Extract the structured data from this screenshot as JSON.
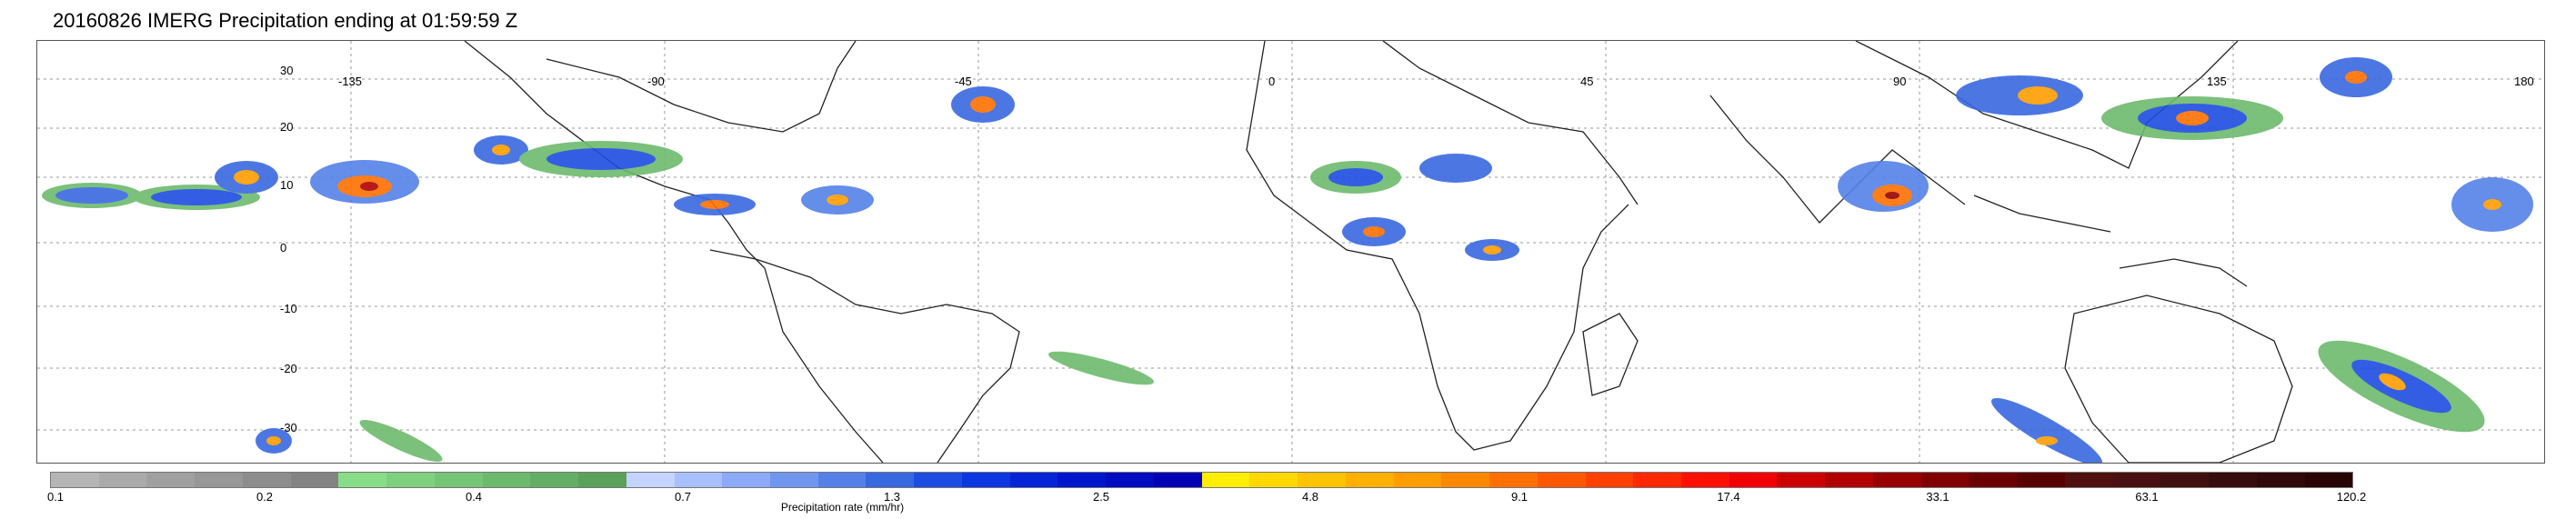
{
  "title": "20160826 IMERG Precipitation ending at 01:59:59 Z",
  "longitude_labels": [
    "-135",
    "-90",
    "-45",
    "0",
    "45",
    "90",
    "135",
    "180"
  ],
  "latitude_labels": [
    "30",
    "20",
    "10",
    "0",
    "-10",
    "-20",
    "-30"
  ],
  "colorbar": {
    "ticks": [
      "0.1",
      "0.2",
      "0.4",
      "0.7",
      "1.3",
      "2.5",
      "4.8",
      "9.1",
      "17.4",
      "33.1",
      "63.1",
      "120.2"
    ],
    "title": "Precipitation rate (mm/hr)",
    "colors": [
      "#b5b5b5",
      "#aaaaaa",
      "#a0a0a0",
      "#979797",
      "#8d8d8d",
      "#838383",
      "#88dd88",
      "#7fd17f",
      "#76c576",
      "#6db96d",
      "#64ad64",
      "#5ba15b",
      "#c4d4ff",
      "#a8c0ff",
      "#8caaf8",
      "#7096f0",
      "#5480e8",
      "#3868e0",
      "#1c4ce0",
      "#0c36e0",
      "#0524d8",
      "#0016cc",
      "#000cc0",
      "#0000b4",
      "#ffee00",
      "#ffd800",
      "#ffc400",
      "#ffb000",
      "#ff9c00",
      "#ff8800",
      "#ff7000",
      "#ff5800",
      "#ff4000",
      "#ff2800",
      "#ff1000",
      "#f00000",
      "#cc0000",
      "#b00000",
      "#960000",
      "#800000",
      "#6c0000",
      "#580000",
      "#501010",
      "#481010",
      "#401010",
      "#380c0c",
      "#300808",
      "#280404"
    ]
  }
}
